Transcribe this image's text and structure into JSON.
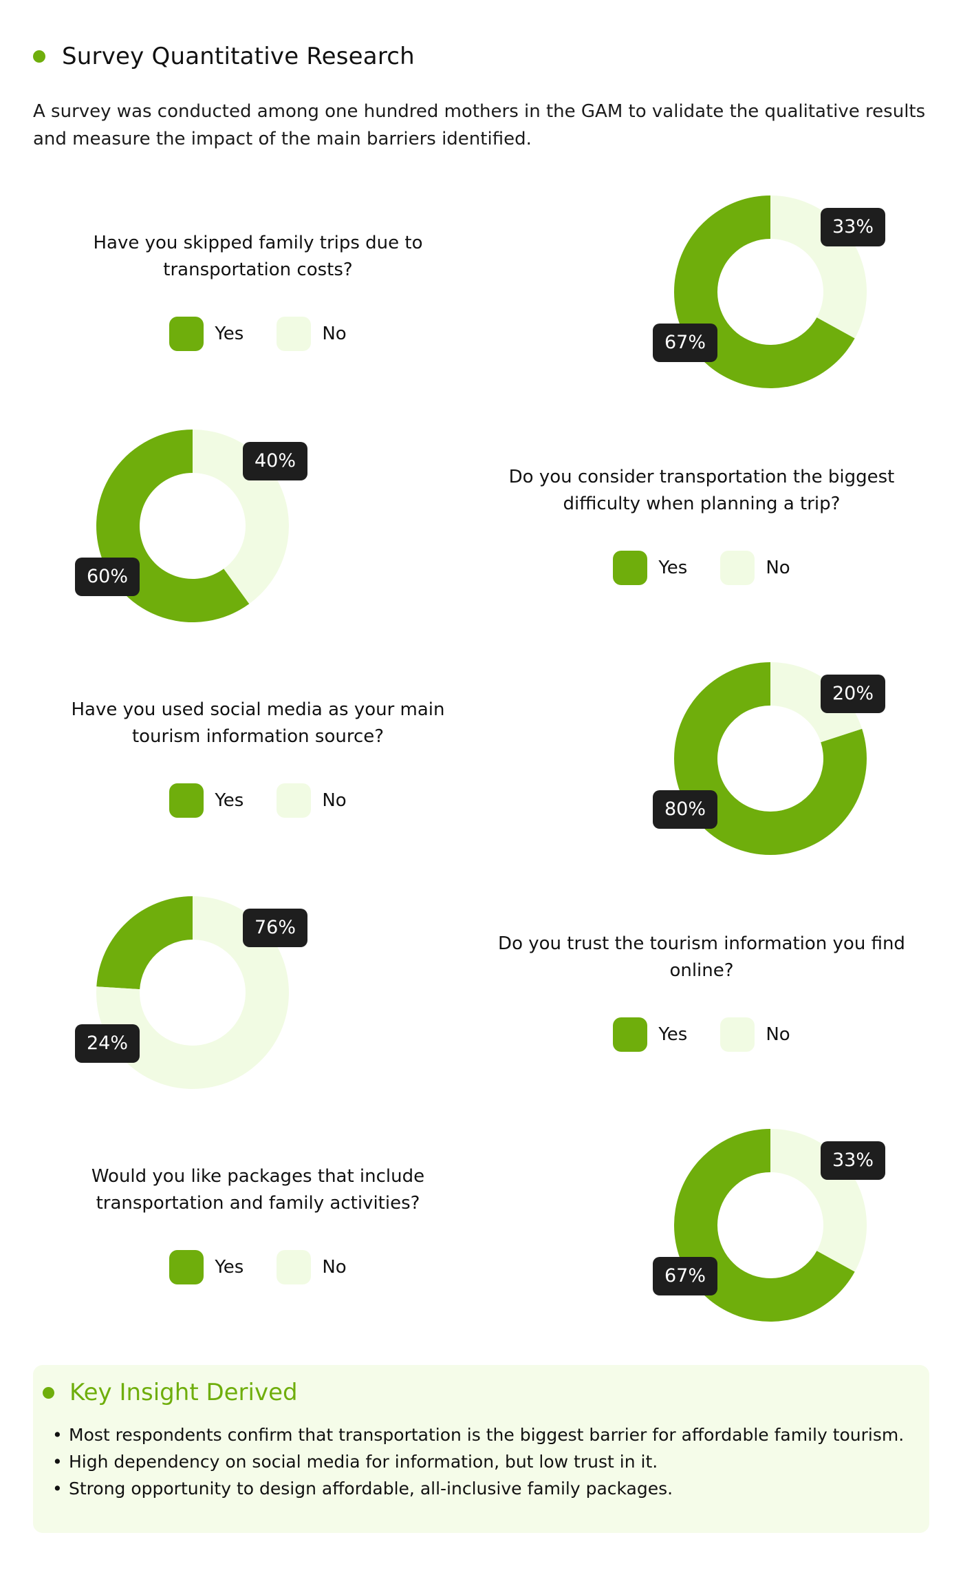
{
  "header": {
    "title": "Survey Quantitative Research"
  },
  "intro": " A survey was conducted among one hundred mothers in the GAM to validate the qualitative results and measure the impact of the main barriers identified.",
  "legend": {
    "yes": "Yes",
    "no": "No"
  },
  "colors": {
    "yes": "#6fae0c",
    "no": "#f1fbe3",
    "badge": "#1e1e1e"
  },
  "chart_data": [
    {
      "type": "pie",
      "title": "Have you skipped family trips due to transportation costs?",
      "categories": [
        "Yes",
        "No"
      ],
      "values": [
        67,
        33
      ],
      "labels": [
        "67%",
        "33%"
      ]
    },
    {
      "type": "pie",
      "title": "Do you consider transportation the biggest difficulty when planning a trip?",
      "categories": [
        "Yes",
        "No"
      ],
      "values": [
        60,
        40
      ],
      "labels": [
        "60%",
        "40%"
      ]
    },
    {
      "type": "pie",
      "title": "Have you used social media as your main tourism information source?",
      "categories": [
        "Yes",
        "No"
      ],
      "values": [
        80,
        20
      ],
      "labels": [
        "80%",
        "20%"
      ]
    },
    {
      "type": "pie",
      "title": "Do you trust the tourism information you find online?",
      "categories": [
        "Yes",
        "No"
      ],
      "values": [
        24,
        76
      ],
      "labels": [
        "24%",
        "76%"
      ]
    },
    {
      "type": "pie",
      "title": "Would you like packages that include transportation and family activities?",
      "categories": [
        "Yes",
        "No"
      ],
      "values": [
        67,
        33
      ],
      "labels": [
        "67%",
        "33%"
      ]
    }
  ],
  "insight": {
    "title": "Key Insight Derived",
    "items": [
      "Most respondents confirm that transportation is the biggest barrier for affordable family tourism.",
      "High dependency on social media for information, but low trust in it.",
      "Strong opportunity to design affordable, all-inclusive family packages."
    ]
  }
}
